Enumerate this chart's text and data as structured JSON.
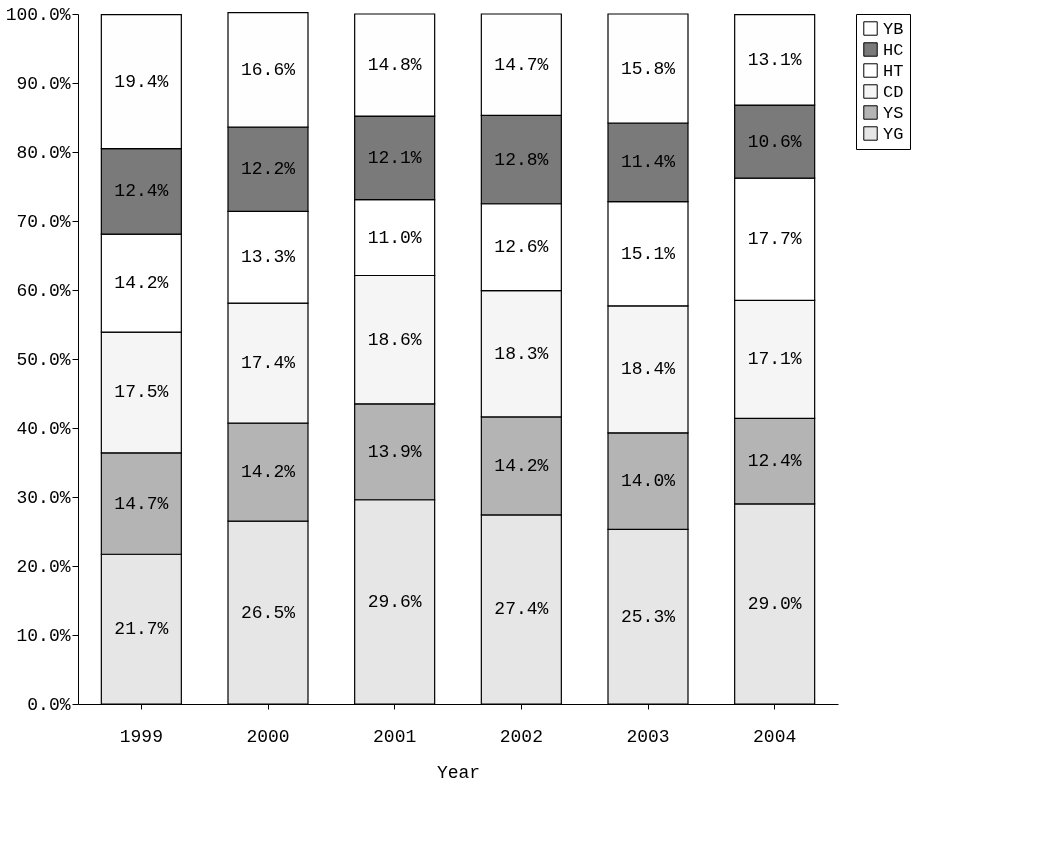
{
  "chart_data": {
    "type": "bar",
    "stacked": true,
    "xlabel": "Year",
    "categories": [
      "1999",
      "2000",
      "2001",
      "2002",
      "2003",
      "2004"
    ],
    "ylim": [
      0,
      100
    ],
    "yticks": [
      {
        "value": 0,
        "label": "0.0%"
      },
      {
        "value": 10,
        "label": "10.0%"
      },
      {
        "value": 20,
        "label": "20.0%"
      },
      {
        "value": 30,
        "label": "30.0%"
      },
      {
        "value": 40,
        "label": "40.0%"
      },
      {
        "value": 50,
        "label": "50.0%"
      },
      {
        "value": 60,
        "label": "60.0%"
      },
      {
        "value": 70,
        "label": "70.0%"
      },
      {
        "value": 80,
        "label": "80.0%"
      },
      {
        "value": 90,
        "label": "90.0%"
      },
      {
        "value": 100,
        "label": "100.0%"
      }
    ],
    "grid": false,
    "legend": "right",
    "series": [
      {
        "name": "YG",
        "color": "#e6e6e6",
        "values": [
          21.7,
          26.5,
          29.6,
          27.4,
          25.3,
          29.0
        ],
        "value_labels": [
          "21.7%",
          "26.5%",
          "29.6%",
          "27.4%",
          "25.3%",
          "29.0%"
        ]
      },
      {
        "name": "YS",
        "color": "#b4b4b4",
        "values": [
          14.7,
          14.2,
          13.9,
          14.2,
          14.0,
          12.4
        ],
        "value_labels": [
          "14.7%",
          "14.2%",
          "13.9%",
          "14.2%",
          "14.0%",
          "12.4%"
        ]
      },
      {
        "name": "CD",
        "color": "#f5f5f5",
        "values": [
          17.5,
          17.4,
          18.6,
          18.3,
          18.4,
          17.1
        ],
        "value_labels": [
          "17.5%",
          "17.4%",
          "18.6%",
          "18.3%",
          "18.4%",
          "17.1%"
        ]
      },
      {
        "name": "HT",
        "color": "#ffffff",
        "values": [
          14.2,
          13.3,
          11.0,
          12.6,
          15.1,
          17.7
        ],
        "value_labels": [
          "14.2%",
          "13.3%",
          "11.0%",
          "12.6%",
          "15.1%",
          "17.7%"
        ]
      },
      {
        "name": "HC",
        "color": "#7a7a7a",
        "values": [
          12.4,
          12.2,
          12.1,
          12.8,
          11.4,
          10.6
        ],
        "value_labels": [
          "12.4%",
          "12.2%",
          "12.1%",
          "12.8%",
          "11.4%",
          "10.6%"
        ]
      },
      {
        "name": "YB",
        "color": "#fefefe",
        "values": [
          19.4,
          16.6,
          14.8,
          14.7,
          15.8,
          13.1
        ],
        "value_labels": [
          "19.4%",
          "16.6%",
          "14.8%",
          "14.7%",
          "15.8%",
          "13.1%"
        ]
      }
    ]
  }
}
